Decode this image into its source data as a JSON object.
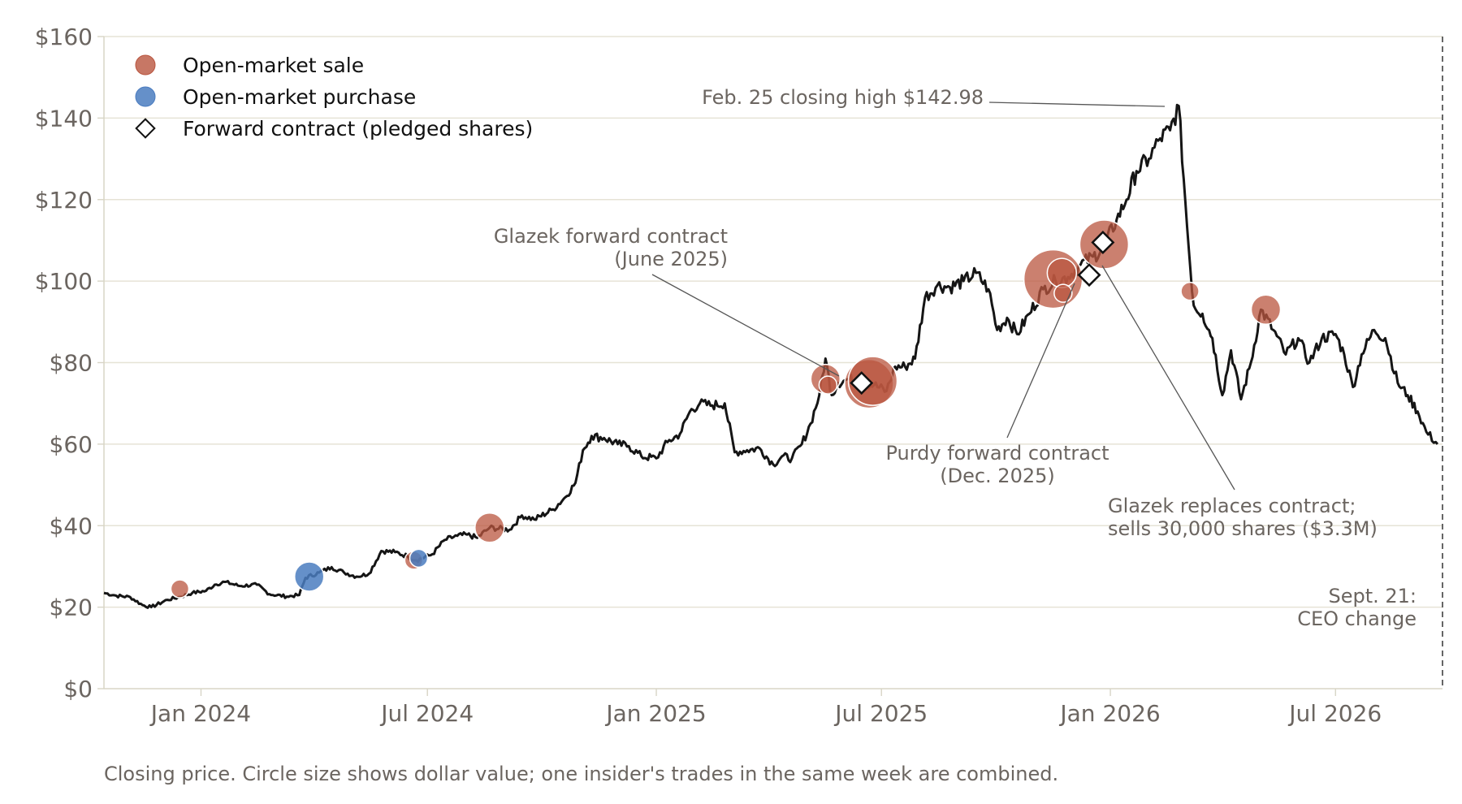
{
  "chart_data": {
    "type": "line",
    "title": "",
    "xlabel": "",
    "ylabel": "",
    "ylim": [
      0,
      160
    ],
    "xlim": [
      "2023-10-15",
      "2026-09-25"
    ],
    "grid": "horizontal",
    "legend_position": "top-left",
    "colors": {
      "line": "#151515",
      "sale": "#b9553f",
      "purchase": "#4a7cc0",
      "grid": "#e6e3d6",
      "axis": "#d8d5c6",
      "text": "#6b6560",
      "ceo_line": "#555555"
    },
    "y_ticks": [
      {
        "value": 0,
        "label": "$0"
      },
      {
        "value": 20,
        "label": "$20"
      },
      {
        "value": 40,
        "label": "$40"
      },
      {
        "value": 60,
        "label": "$60"
      },
      {
        "value": 80,
        "label": "$80"
      },
      {
        "value": 100,
        "label": "$100"
      },
      {
        "value": 120,
        "label": "$120"
      },
      {
        "value": 140,
        "label": "$140"
      },
      {
        "value": 160,
        "label": "$160"
      }
    ],
    "x_ticks": [
      {
        "date": "2024-01-01",
        "label": "Jan 2024"
      },
      {
        "date": "2024-07-01",
        "label": "Jul 2024"
      },
      {
        "date": "2025-01-01",
        "label": "Jan 2025"
      },
      {
        "date": "2025-07-01",
        "label": "Jul 2025"
      },
      {
        "date": "2026-01-01",
        "label": "Jan 2026"
      },
      {
        "date": "2026-07-01",
        "label": "Jul 2026"
      }
    ],
    "legend": [
      {
        "key": "sale",
        "label": "Open-market sale"
      },
      {
        "key": "purchase",
        "label": "Open-market purchase"
      },
      {
        "key": "forward",
        "label": "Forward contract (pledged shares)"
      }
    ],
    "price_series": {
      "name": "Closing price",
      "points": [
        [
          "2023-10-15",
          23.5
        ],
        [
          "2023-10-25",
          22.8
        ],
        [
          "2023-11-05",
          22.5
        ],
        [
          "2023-11-15",
          20.5
        ],
        [
          "2023-11-22",
          20.0
        ],
        [
          "2023-12-05",
          21.8
        ],
        [
          "2023-12-15",
          22.5
        ],
        [
          "2023-12-25",
          23.5
        ],
        [
          "2024-01-05",
          24.0
        ],
        [
          "2024-01-12",
          25.5
        ],
        [
          "2024-01-20",
          26.2
        ],
        [
          "2024-02-01",
          25.2
        ],
        [
          "2024-02-15",
          25.5
        ],
        [
          "2024-02-25",
          23.2
        ],
        [
          "2024-03-10",
          22.6
        ],
        [
          "2024-03-20",
          23.0
        ],
        [
          "2024-03-25",
          27.2
        ],
        [
          "2024-04-05",
          28.5
        ],
        [
          "2024-04-15",
          29.8
        ],
        [
          "2024-04-25",
          28.5
        ],
        [
          "2024-05-05",
          27.5
        ],
        [
          "2024-05-15",
          28.2
        ],
        [
          "2024-05-25",
          33.8
        ],
        [
          "2024-06-05",
          33.5
        ],
        [
          "2024-06-15",
          32.5
        ],
        [
          "2024-06-22",
          31.5
        ],
        [
          "2024-07-05",
          33.0
        ],
        [
          "2024-07-15",
          36.5
        ],
        [
          "2024-07-25",
          37.5
        ],
        [
          "2024-08-02",
          37.8
        ],
        [
          "2024-08-10",
          37.0
        ],
        [
          "2024-08-20",
          39.5
        ],
        [
          "2024-09-05",
          39.0
        ],
        [
          "2024-09-15",
          42.5
        ],
        [
          "2024-09-25",
          41.5
        ],
        [
          "2024-10-10",
          44.0
        ],
        [
          "2024-10-20",
          47.0
        ],
        [
          "2024-10-28",
          50.5
        ],
        [
          "2024-11-03",
          58.5
        ],
        [
          "2024-11-10",
          62.0
        ],
        [
          "2024-11-20",
          61.5
        ],
        [
          "2024-12-01",
          60.0
        ],
        [
          "2024-12-10",
          59.5
        ],
        [
          "2024-12-20",
          57.0
        ],
        [
          "2025-01-01",
          56.5
        ],
        [
          "2025-01-10",
          60.5
        ],
        [
          "2025-01-20",
          62.5
        ],
        [
          "2025-01-28",
          68.0
        ],
        [
          "2025-02-05",
          70.0
        ],
        [
          "2025-02-15",
          69.5
        ],
        [
          "2025-02-25",
          70.0
        ],
        [
          "2025-03-05",
          58.0
        ],
        [
          "2025-03-15",
          58.5
        ],
        [
          "2025-03-25",
          59.0
        ],
        [
          "2025-04-05",
          55.0
        ],
        [
          "2025-04-12",
          57.0
        ],
        [
          "2025-04-20",
          56.5
        ],
        [
          "2025-04-28",
          60.0
        ],
        [
          "2025-05-05",
          65.0
        ],
        [
          "2025-05-12",
          72.0
        ],
        [
          "2025-05-17",
          81.0
        ],
        [
          "2025-05-22",
          72.0
        ],
        [
          "2025-05-27",
          75.0
        ],
        [
          "2025-06-05",
          76.0
        ],
        [
          "2025-06-15",
          75.0
        ],
        [
          "2025-06-25",
          74.5
        ],
        [
          "2025-07-05",
          73.0
        ],
        [
          "2025-07-12",
          79.0
        ],
        [
          "2025-07-20",
          79.0
        ],
        [
          "2025-07-28",
          81.0
        ],
        [
          "2025-08-05",
          96.0
        ],
        [
          "2025-08-15",
          99.0
        ],
        [
          "2025-08-25",
          98.5
        ],
        [
          "2025-09-05",
          100.0
        ],
        [
          "2025-09-15",
          102.0
        ],
        [
          "2025-09-25",
          98.0
        ],
        [
          "2025-10-02",
          88.0
        ],
        [
          "2025-10-10",
          91.0
        ],
        [
          "2025-10-18",
          87.0
        ],
        [
          "2025-10-28",
          92.0
        ],
        [
          "2025-11-08",
          98.0
        ],
        [
          "2025-11-18",
          100.0
        ],
        [
          "2025-11-28",
          101.0
        ],
        [
          "2025-12-08",
          104.0
        ],
        [
          "2025-12-18",
          106.0
        ],
        [
          "2025-12-26",
          108.0
        ],
        [
          "2026-01-06",
          115.0
        ],
        [
          "2026-01-14",
          120.0
        ],
        [
          "2026-01-22",
          127.0
        ],
        [
          "2026-02-01",
          130.0
        ],
        [
          "2026-02-10",
          135.0
        ],
        [
          "2026-02-18",
          137.0
        ],
        [
          "2026-02-25",
          142.98
        ],
        [
          "2026-03-01",
          125.0
        ],
        [
          "2026-03-05",
          108.0
        ],
        [
          "2026-03-09",
          94.0
        ],
        [
          "2026-03-16",
          92.0
        ],
        [
          "2026-03-24",
          86.0
        ],
        [
          "2026-04-01",
          72.0
        ],
        [
          "2026-04-08",
          83.0
        ],
        [
          "2026-04-16",
          71.0
        ],
        [
          "2026-04-24",
          80.0
        ],
        [
          "2026-05-02",
          93.0
        ],
        [
          "2026-05-12",
          88.0
        ],
        [
          "2026-05-22",
          82.0
        ],
        [
          "2026-06-01",
          86.0
        ],
        [
          "2026-06-10",
          80.0
        ],
        [
          "2026-06-20",
          86.0
        ],
        [
          "2026-07-01",
          87.0
        ],
        [
          "2026-07-08",
          82.0
        ],
        [
          "2026-07-15",
          74.0
        ],
        [
          "2026-07-22",
          82.0
        ],
        [
          "2026-08-01",
          88.0
        ],
        [
          "2026-08-10",
          86.0
        ],
        [
          "2026-08-20",
          75.0
        ],
        [
          "2026-08-28",
          72.0
        ],
        [
          "2026-09-05",
          68.0
        ],
        [
          "2026-09-12",
          63.0
        ],
        [
          "2026-09-21",
          60.0
        ]
      ]
    },
    "trades": [
      {
        "type": "sale",
        "date": "2023-12-15",
        "price": 24.5,
        "size": "small"
      },
      {
        "type": "purchase",
        "date": "2024-03-28",
        "price": 27.5,
        "size": "medium"
      },
      {
        "type": "sale",
        "date": "2024-06-20",
        "price": 31.5,
        "size": "small"
      },
      {
        "type": "purchase",
        "date": "2024-06-24",
        "price": 32.0,
        "size": "small"
      },
      {
        "type": "sale",
        "date": "2024-08-20",
        "price": 39.5,
        "size": "medium"
      },
      {
        "type": "sale",
        "date": "2025-05-17",
        "price": 76.0,
        "size": "medium"
      },
      {
        "type": "sale",
        "date": "2025-05-19",
        "price": 74.5,
        "size": "small"
      },
      {
        "type": "sale",
        "date": "2025-06-21",
        "price": 74.8,
        "size": "large"
      },
      {
        "type": "sale",
        "date": "2025-06-24",
        "price": 75.5,
        "size": "large"
      },
      {
        "type": "sale",
        "date": "2025-11-16",
        "price": 100.5,
        "size": "xlarge"
      },
      {
        "type": "sale",
        "date": "2025-11-23",
        "price": 102.0,
        "size": "medium"
      },
      {
        "type": "sale",
        "date": "2025-11-24",
        "price": 97.0,
        "size": "small"
      },
      {
        "type": "sale",
        "date": "2025-12-27",
        "price": 109.0,
        "size": "large"
      },
      {
        "type": "sale",
        "date": "2026-03-06",
        "price": 97.5,
        "size": "small"
      },
      {
        "type": "sale",
        "date": "2026-05-06",
        "price": 93.0,
        "size": "medium"
      }
    ],
    "forward_contracts": [
      {
        "date": "2025-06-15",
        "price": 75.0
      },
      {
        "date": "2025-12-15",
        "price": 101.5
      },
      {
        "date": "2025-12-26",
        "price": 109.5
      }
    ],
    "ceo_change": {
      "date": "2026-09-25",
      "label_lines": [
        "Sept. 21:",
        "CEO change"
      ]
    },
    "annotations": {
      "feb_high": "Feb. 25 closing high $142.98",
      "glazek_june": [
        "Glazek forward contract",
        "(June 2025)"
      ],
      "purdy_dec": [
        "Purdy forward contract",
        "(Dec. 2025)"
      ],
      "glazek_replace": [
        "Glazek replaces contract;",
        "sells 30,000 shares ($3.3M)"
      ]
    },
    "caption": "Closing price. Circle size shows dollar value; one insider's trades in the same week are combined."
  }
}
